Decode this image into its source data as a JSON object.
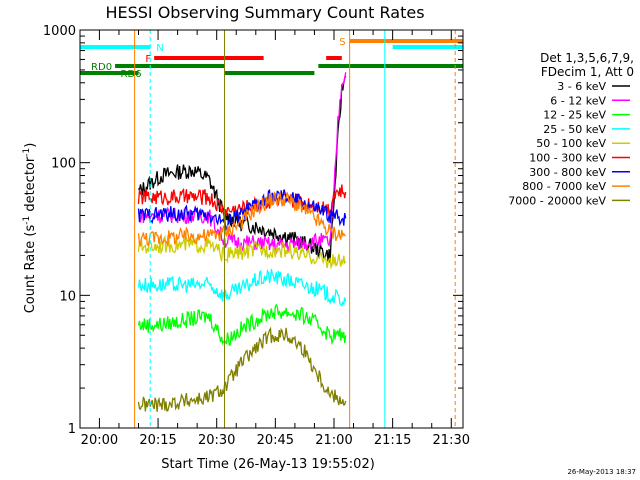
{
  "chart_data": {
    "type": "line",
    "title": "HESSI Observing Summary Count Rates",
    "xlabel": "Start Time (26-May-13 19:55:02)",
    "ylabel_main": "Count Rate (s",
    "ylabel_sup1": "-1",
    "ylabel_mid": " detector",
    "ylabel_sup2": "-1",
    "ylabel_end": ")",
    "yscale": "log",
    "ylim": [
      1,
      1000
    ],
    "xlim": [
      "19:55:02",
      "21:33"
    ],
    "xtick_labels": [
      "20:00",
      "20:15",
      "20:30",
      "20:45",
      "21:00",
      "21:15",
      "21:30"
    ],
    "xtick_values": [
      "20:00",
      "20:15",
      "20:30",
      "20:45",
      "21:00",
      "21:15",
      "21:30"
    ],
    "ytick_labels": [
      "1",
      "10",
      "100",
      "1000"
    ],
    "ytick_values": [
      1,
      10,
      100,
      1000
    ],
    "legend_header": [
      "Det 1,3,5,6,7,9,",
      "FDecim 1, Att 0"
    ],
    "series": [
      {
        "name": "3 - 6 keV",
        "color": "#000000",
        "x": [
          "20:10",
          "20:13",
          "20:16",
          "20:20",
          "20:24",
          "20:28",
          "20:32",
          "20:36",
          "20:40",
          "20:44",
          "20:48",
          "20:52",
          "20:56",
          "20:59",
          "21:00",
          "21:01",
          "21:02",
          "21:03"
        ],
        "y": [
          60,
          70,
          80,
          85,
          88,
          75,
          40,
          35,
          33,
          30,
          28,
          25,
          22,
          20,
          50,
          150,
          350,
          450
        ]
      },
      {
        "name": "6 - 12 keV",
        "color": "#ff00ff",
        "x": [
          "20:10",
          "20:16",
          "20:22",
          "20:28",
          "20:32",
          "20:36",
          "20:40",
          "20:44",
          "20:48",
          "20:52",
          "20:56",
          "20:59",
          "21:00",
          "21:01",
          "21:02",
          "21:03"
        ],
        "y": [
          40,
          40,
          40,
          40,
          26,
          25,
          25,
          24,
          24,
          25,
          26,
          25,
          60,
          200,
          400,
          480
        ]
      },
      {
        "name": "12 - 25 keV",
        "color": "#00ff00",
        "x": [
          "20:10",
          "20:16",
          "20:22",
          "20:28",
          "20:32",
          "20:36",
          "20:40",
          "20:44",
          "20:48",
          "20:52",
          "20:56",
          "20:59",
          "21:03"
        ],
        "y": [
          6,
          6,
          6.5,
          7,
          4.5,
          5.5,
          6.5,
          7.5,
          7.5,
          7,
          6,
          5,
          5
        ]
      },
      {
        "name": "25 - 50 keV",
        "color": "#00ffff",
        "x": [
          "20:10",
          "20:16",
          "20:22",
          "20:28",
          "20:32",
          "20:36",
          "20:40",
          "20:44",
          "20:48",
          "20:52",
          "20:56",
          "20:59",
          "21:03"
        ],
        "y": [
          12,
          12,
          12,
          12,
          10,
          11,
          13,
          14,
          13,
          12,
          11,
          10,
          9
        ]
      },
      {
        "name": "50 - 100 keV",
        "color": "#cccc00",
        "x": [
          "20:10",
          "20:16",
          "20:22",
          "20:28",
          "20:32",
          "20:36",
          "20:40",
          "20:44",
          "20:48",
          "20:52",
          "20:56",
          "20:59",
          "21:03"
        ],
        "y": [
          23,
          24,
          24,
          24,
          20,
          21,
          22,
          22,
          22,
          20,
          19,
          18,
          18
        ]
      },
      {
        "name": "100 - 300 keV",
        "color": "#ff0000",
        "x": [
          "20:10",
          "20:16",
          "20:22",
          "20:28",
          "20:32",
          "20:36",
          "20:40",
          "20:44",
          "20:48",
          "20:52",
          "20:56",
          "20:59",
          "21:00",
          "21:03"
        ],
        "y": [
          55,
          55,
          55,
          55,
          43,
          45,
          48,
          52,
          52,
          50,
          48,
          45,
          60,
          60
        ]
      },
      {
        "name": "300 - 800 keV",
        "color": "#0000ff",
        "x": [
          "20:10",
          "20:16",
          "20:22",
          "20:28",
          "20:32",
          "20:36",
          "20:40",
          "20:44",
          "20:48",
          "20:52",
          "20:56",
          "20:59",
          "21:03"
        ],
        "y": [
          40,
          41,
          41,
          41,
          35,
          40,
          48,
          55,
          55,
          50,
          44,
          40,
          38
        ]
      },
      {
        "name": "800 - 7000 keV",
        "color": "#ff8000",
        "x": [
          "20:10",
          "20:16",
          "20:22",
          "20:28",
          "20:32",
          "20:36",
          "20:40",
          "20:44",
          "20:48",
          "20:52",
          "20:56",
          "20:59",
          "21:03"
        ],
        "y": [
          27,
          27,
          28,
          28,
          30,
          35,
          45,
          53,
          53,
          45,
          36,
          30,
          28
        ]
      },
      {
        "name": "7000 - 20000 keV",
        "color": "#808000",
        "x": [
          "20:10",
          "20:16",
          "20:22",
          "20:28",
          "20:32",
          "20:36",
          "20:40",
          "20:44",
          "20:48",
          "20:52",
          "20:56",
          "20:59",
          "21:03"
        ],
        "y": [
          1.5,
          1.5,
          1.6,
          1.7,
          2,
          3,
          4,
          5,
          5,
          4,
          2.5,
          1.8,
          1.6
        ]
      }
    ],
    "status_bars": [
      {
        "label": "N",
        "color": "#00ffff",
        "segments": [
          [
            "19:55:02",
            "20:13"
          ],
          [
            "21:15",
            "21:33"
          ]
        ]
      },
      {
        "label": "S",
        "color": "#ff8000",
        "segments": [
          [
            "21:04",
            "21:33"
          ]
        ]
      },
      {
        "label": "F",
        "color": "#ff0000",
        "segments": [
          [
            "20:14",
            "20:42"
          ],
          [
            "20:58",
            "21:02"
          ]
        ]
      },
      {
        "label": "RD0",
        "color": "#008000",
        "segments": [
          [
            "20:04",
            "20:32"
          ],
          [
            "20:56",
            "21:33"
          ]
        ]
      },
      {
        "label": "RD6",
        "color": "#008000",
        "segments": [
          [
            "19:55:02",
            "20:10"
          ],
          [
            "20:32",
            "20:55"
          ]
        ]
      }
    ],
    "vertical_lines": [
      {
        "x": "20:09",
        "color": "#ff8000",
        "style": "solid"
      },
      {
        "x": "20:13",
        "color": "#00ffff",
        "style": "dashed"
      },
      {
        "x": "20:32",
        "color": "#808000",
        "style": "solid"
      },
      {
        "x": "21:04",
        "color": "#ff8000",
        "style": "solid"
      },
      {
        "x": "21:13",
        "color": "#00ffff",
        "style": "solid"
      },
      {
        "x": "21:31",
        "color": "#ff8000",
        "style": "dashed"
      }
    ]
  },
  "footer": {
    "timestamp": "26-May-2013 18:37"
  }
}
